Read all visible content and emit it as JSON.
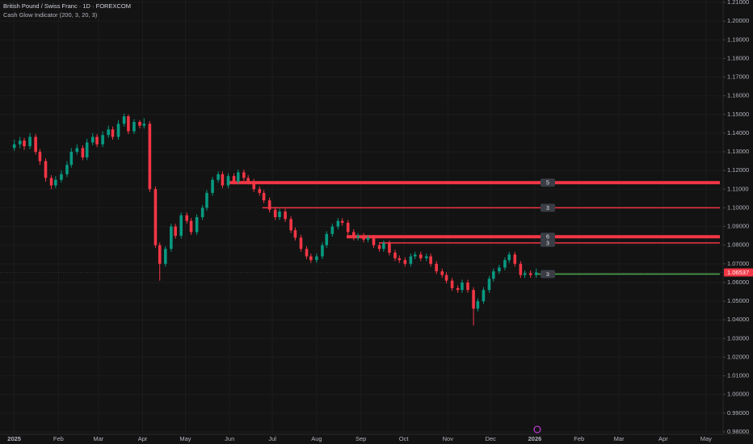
{
  "chart_data": {
    "type": "candlestick",
    "title": "British Pound / Swiss Franc · 1D · FOREXCOM",
    "subtitle": "Cash Glow Indicator (200, 3, 20, 3)",
    "up_color": "#089981",
    "down_color": "#f23645",
    "xlim": [
      -10,
      497
    ],
    "ylim": [
      0.9787,
      1.2113
    ],
    "grid": true,
    "xticks": [
      {
        "value": 0,
        "label": "2025"
      },
      {
        "value": 31,
        "label": "Feb"
      },
      {
        "value": 59,
        "label": "Mar"
      },
      {
        "value": 90,
        "label": "Apr"
      },
      {
        "value": 120,
        "label": "May"
      },
      {
        "value": 151,
        "label": "Jun"
      },
      {
        "value": 181,
        "label": "Jul"
      },
      {
        "value": 212,
        "label": "Aug"
      },
      {
        "value": 243,
        "label": "Sep"
      },
      {
        "value": 273,
        "label": "Oct"
      },
      {
        "value": 304,
        "label": "Nov"
      },
      {
        "value": 334,
        "label": "Dec"
      },
      {
        "value": 365,
        "label": "2026"
      },
      {
        "value": 396,
        "label": "Feb"
      },
      {
        "value": 424,
        "label": "Mar"
      },
      {
        "value": 455,
        "label": "Apr"
      },
      {
        "value": 485,
        "label": "May"
      }
    ],
    "yticks": [
      {
        "value": 1.21,
        "label": "1.21000"
      },
      {
        "value": 1.2,
        "label": "1.20000"
      },
      {
        "value": 1.19,
        "label": "1.19000"
      },
      {
        "value": 1.18,
        "label": "1.18000"
      },
      {
        "value": 1.17,
        "label": "1.17000"
      },
      {
        "value": 1.16,
        "label": "1.16000"
      },
      {
        "value": 1.15,
        "label": "1.15000"
      },
      {
        "value": 1.14,
        "label": "1.14000"
      },
      {
        "value": 1.13,
        "label": "1.13000"
      },
      {
        "value": 1.12,
        "label": "1.12000"
      },
      {
        "value": 1.11,
        "label": "1.11000"
      },
      {
        "value": 1.1,
        "label": "1.10000"
      },
      {
        "value": 1.09,
        "label": "1.09000"
      },
      {
        "value": 1.08,
        "label": "1.08000"
      },
      {
        "value": 1.07,
        "label": "1.07000"
      },
      {
        "value": 1.06,
        "label": "1.06000"
      },
      {
        "value": 1.05,
        "label": "1.05000"
      },
      {
        "value": 1.04,
        "label": "1.04000"
      },
      {
        "value": 1.03,
        "label": "1.03000"
      },
      {
        "value": 1.02,
        "label": "1.02000"
      },
      {
        "value": 1.01,
        "label": "1.01000"
      },
      {
        "value": 1.0,
        "label": "1.00000"
      },
      {
        "value": 0.99,
        "label": "0.99000"
      },
      {
        "value": 0.98,
        "label": "0.98000"
      }
    ],
    "last_price": 1.06537,
    "levels": [
      {
        "price": 1.1135,
        "start": 150,
        "label": "5",
        "color": "#f23645",
        "style": "thick"
      },
      {
        "price": 1.1,
        "start": 174,
        "label": "3",
        "color": "#f23645",
        "style": "thin"
      },
      {
        "price": 1.0845,
        "start": 233,
        "label": "6",
        "color": "#f23645",
        "style": "thick"
      },
      {
        "price": 1.0812,
        "start": 256,
        "label": "3",
        "color": "#f23645",
        "style": "thin"
      },
      {
        "price": 1.0645,
        "start": 366,
        "label": "3",
        "color": "#4caf50",
        "style": "thin"
      }
    ],
    "candles": [
      [
        0,
        1.132,
        1.1365,
        1.1305,
        1.134
      ],
      [
        4,
        1.134,
        1.138,
        1.132,
        1.136
      ],
      [
        7,
        1.136,
        1.1375,
        1.131,
        1.133
      ],
      [
        11,
        1.133,
        1.14,
        1.1315,
        1.138
      ],
      [
        15,
        1.138,
        1.1395,
        1.1285,
        1.13
      ],
      [
        18,
        1.13,
        1.1315,
        1.123,
        1.125
      ],
      [
        22,
        1.125,
        1.1265,
        1.114,
        1.116
      ],
      [
        26,
        1.116,
        1.1175,
        1.11,
        1.112
      ],
      [
        29,
        1.112,
        1.117,
        1.1105,
        1.115
      ],
      [
        33,
        1.115,
        1.12,
        1.1135,
        1.118
      ],
      [
        37,
        1.118,
        1.125,
        1.1165,
        1.123
      ],
      [
        40,
        1.123,
        1.132,
        1.1215,
        1.13
      ],
      [
        44,
        1.13,
        1.134,
        1.1285,
        1.132
      ],
      [
        48,
        1.132,
        1.1335,
        1.1255,
        1.127
      ],
      [
        51,
        1.127,
        1.137,
        1.1255,
        1.135
      ],
      [
        55,
        1.135,
        1.14,
        1.1335,
        1.138
      ],
      [
        58,
        1.138,
        1.1395,
        1.1325,
        1.134
      ],
      [
        62,
        1.134,
        1.141,
        1.1325,
        1.139
      ],
      [
        66,
        1.139,
        1.144,
        1.1375,
        1.142
      ],
      [
        69,
        1.142,
        1.1435,
        1.1365,
        1.138
      ],
      [
        73,
        1.138,
        1.147,
        1.1365,
        1.145
      ],
      [
        77,
        1.145,
        1.1505,
        1.1435,
        1.149
      ],
      [
        80,
        1.149,
        1.15,
        1.1395,
        1.141
      ],
      [
        84,
        1.141,
        1.1475,
        1.1395,
        1.146
      ],
      [
        88,
        1.146,
        1.147,
        1.1425,
        1.144
      ],
      [
        91,
        1.144,
        1.148,
        1.1425,
        1.145
      ],
      [
        95,
        1.145,
        1.1465,
        1.1085,
        1.11
      ],
      [
        99,
        1.11,
        1.1115,
        1.0785,
        1.08
      ],
      [
        102,
        1.08,
        1.0815,
        1.061,
        1.07
      ],
      [
        106,
        1.07,
        1.0795,
        1.0685,
        1.078
      ],
      [
        110,
        1.078,
        1.0915,
        1.0765,
        1.09
      ],
      [
        113,
        1.09,
        1.0915,
        1.0835,
        1.085
      ],
      [
        117,
        1.085,
        1.0975,
        1.0835,
        1.096
      ],
      [
        121,
        1.096,
        1.0975,
        1.0915,
        1.093
      ],
      [
        124,
        1.093,
        1.0945,
        1.0855,
        1.087
      ],
      [
        128,
        1.087,
        1.0965,
        1.0855,
        1.095
      ],
      [
        132,
        1.095,
        1.1015,
        1.0935,
        1.1
      ],
      [
        135,
        1.1,
        1.1095,
        1.0985,
        1.108
      ],
      [
        139,
        1.108,
        1.1165,
        1.1065,
        1.115
      ],
      [
        143,
        1.115,
        1.1195,
        1.1135,
        1.118
      ],
      [
        146,
        1.118,
        1.1195,
        1.1105,
        1.112
      ],
      [
        150,
        1.112,
        1.1185,
        1.1105,
        1.117
      ],
      [
        154,
        1.117,
        1.1185,
        1.1125,
        1.114
      ],
      [
        157,
        1.114,
        1.1205,
        1.1125,
        1.119
      ],
      [
        161,
        1.119,
        1.1205,
        1.1145,
        1.116
      ],
      [
        164,
        1.116,
        1.1175,
        1.1125,
        1.114
      ],
      [
        168,
        1.114,
        1.1155,
        1.1085,
        1.11
      ],
      [
        172,
        1.11,
        1.1115,
        1.1065,
        1.108
      ],
      [
        175,
        1.108,
        1.1095,
        1.1025,
        1.104
      ],
      [
        179,
        1.104,
        1.1055,
        1.0975,
        1.099
      ],
      [
        183,
        1.099,
        1.1005,
        1.0935,
        1.095
      ],
      [
        186,
        1.095,
        1.0995,
        1.0935,
        1.098
      ],
      [
        190,
        1.098,
        1.0995,
        1.0925,
        1.094
      ],
      [
        194,
        1.094,
        1.0955,
        1.0865,
        1.088
      ],
      [
        197,
        1.088,
        1.0895,
        1.0825,
        1.084
      ],
      [
        201,
        1.084,
        1.0855,
        1.0765,
        1.078
      ],
      [
        205,
        1.078,
        1.0795,
        1.0725,
        1.074
      ],
      [
        208,
        1.074,
        1.0755,
        1.0705,
        1.072
      ],
      [
        212,
        1.072,
        1.0755,
        1.0705,
        1.074
      ],
      [
        216,
        1.074,
        1.0815,
        1.0725,
        1.08
      ],
      [
        219,
        1.08,
        1.0875,
        1.0785,
        1.086
      ],
      [
        223,
        1.086,
        1.0915,
        1.0845,
        1.09
      ],
      [
        227,
        1.09,
        1.0945,
        1.0885,
        1.093
      ],
      [
        230,
        1.093,
        1.0945,
        1.0905,
        1.092
      ],
      [
        234,
        1.092,
        1.0935,
        1.0855,
        1.087
      ],
      [
        238,
        1.087,
        1.0885,
        1.0825,
        1.084
      ],
      [
        241,
        1.084,
        1.0865,
        1.0825,
        1.085
      ],
      [
        245,
        1.085,
        1.0865,
        1.0815,
        1.083
      ],
      [
        248,
        1.083,
        1.0855,
        1.0815,
        1.084
      ],
      [
        252,
        1.084,
        1.0855,
        1.0785,
        1.08
      ],
      [
        256,
        1.08,
        1.0815,
        1.0765,
        1.078
      ],
      [
        259,
        1.078,
        1.0825,
        1.0765,
        1.081
      ],
      [
        263,
        1.081,
        1.0825,
        1.0745,
        1.076
      ],
      [
        267,
        1.076,
        1.0775,
        1.0715,
        1.073
      ],
      [
        270,
        1.073,
        1.0745,
        1.0705,
        1.072
      ],
      [
        274,
        1.072,
        1.0735,
        1.0685,
        1.07
      ],
      [
        278,
        1.07,
        1.0755,
        1.0685,
        1.074
      ],
      [
        281,
        1.074,
        1.0765,
        1.0725,
        1.075
      ],
      [
        285,
        1.075,
        1.0765,
        1.0715,
        1.073
      ],
      [
        289,
        1.073,
        1.0755,
        1.0715,
        1.074
      ],
      [
        292,
        1.074,
        1.0755,
        1.0685,
        1.07
      ],
      [
        296,
        1.07,
        1.0715,
        1.0645,
        1.066
      ],
      [
        300,
        1.066,
        1.0675,
        1.0625,
        1.064
      ],
      [
        303,
        1.064,
        1.0655,
        1.0595,
        1.061
      ],
      [
        307,
        1.061,
        1.0625,
        1.0555,
        1.057
      ],
      [
        311,
        1.057,
        1.0585,
        1.0545,
        1.056
      ],
      [
        314,
        1.056,
        1.0615,
        1.0545,
        1.06
      ],
      [
        318,
        1.06,
        1.0615,
        1.0545,
        1.056
      ],
      [
        322,
        1.056,
        1.0575,
        1.037,
        1.046
      ],
      [
        325,
        1.046,
        1.0515,
        1.0445,
        1.05
      ],
      [
        329,
        1.05,
        1.0575,
        1.0485,
        1.056
      ],
      [
        333,
        1.056,
        1.0635,
        1.0545,
        1.062
      ],
      [
        336,
        1.062,
        1.0675,
        1.0605,
        1.066
      ],
      [
        340,
        1.066,
        1.0695,
        1.0645,
        1.068
      ],
      [
        344,
        1.068,
        1.0735,
        1.0665,
        1.072
      ],
      [
        347,
        1.072,
        1.0765,
        1.0705,
        1.075
      ],
      [
        351,
        1.075,
        1.0765,
        1.0685,
        1.07
      ],
      [
        355,
        1.07,
        1.0715,
        1.0625,
        1.064
      ],
      [
        358,
        1.064,
        1.0665,
        1.0625,
        1.065
      ],
      [
        362,
        1.065,
        1.0665,
        1.0625,
        1.064
      ],
      [
        366,
        1.064,
        1.0675,
        1.0625,
        1.06537
      ]
    ]
  }
}
